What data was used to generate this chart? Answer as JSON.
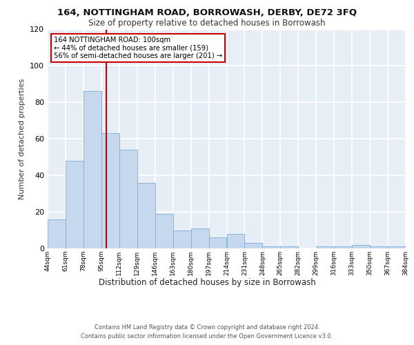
{
  "title1": "164, NOTTINGHAM ROAD, BORROWASH, DERBY, DE72 3FQ",
  "title2": "Size of property relative to detached houses in Borrowash",
  "xlabel": "Distribution of detached houses by size in Borrowash",
  "ylabel": "Number of detached properties",
  "bin_edges": [
    44,
    61,
    78,
    95,
    112,
    129,
    146,
    163,
    180,
    197,
    214,
    231,
    248,
    265,
    282,
    299,
    316,
    333,
    350,
    367,
    384
  ],
  "bar_heights": [
    16,
    48,
    86,
    63,
    54,
    36,
    19,
    10,
    11,
    6,
    8,
    3,
    1,
    1,
    0,
    1,
    1,
    2,
    1,
    1
  ],
  "tick_labels": [
    "44sqm",
    "61sqm",
    "78sqm",
    "95sqm",
    "112sqm",
    "129sqm",
    "146sqm",
    "163sqm",
    "180sqm",
    "197sqm",
    "214sqm",
    "231sqm",
    "248sqm",
    "265sqm",
    "282sqm",
    "299sqm",
    "316sqm",
    "333sqm",
    "350sqm",
    "367sqm",
    "384sqm"
  ],
  "bar_color": "#c5d8ed",
  "bar_edge_color": "#7aaed6",
  "vline_x": 100,
  "vline_color": "#cc0000",
  "annotation_text": "164 NOTTINGHAM ROAD: 100sqm\n← 44% of detached houses are smaller (159)\n56% of semi-detached houses are larger (201) →",
  "annotation_box_color": "#ffffff",
  "annotation_border_color": "#cc0000",
  "bg_color": "#e8eef5",
  "grid_color": "#ffffff",
  "ylim": [
    0,
    120
  ],
  "yticks": [
    0,
    20,
    40,
    60,
    80,
    100,
    120
  ],
  "footer": "Contains HM Land Registry data © Crown copyright and database right 2024.\nContains public sector information licensed under the Open Government Licence v3.0."
}
